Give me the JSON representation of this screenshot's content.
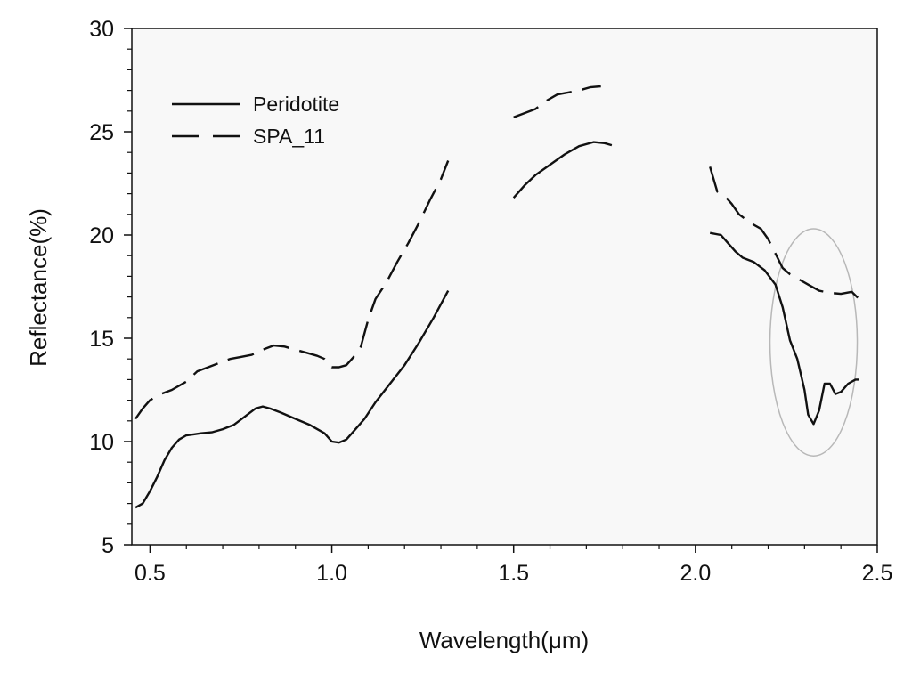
{
  "chart_data": {
    "type": "line",
    "title": "",
    "xlabel": "Wavelength(μm)",
    "ylabel": "Reflectance(%)",
    "xlim": [
      0.45,
      2.5
    ],
    "ylim": [
      5,
      30
    ],
    "xticks": [
      0.5,
      1.0,
      1.5,
      2.0,
      2.5
    ],
    "xtick_labels": [
      "0.5",
      "1.0",
      "1.5",
      "2.0",
      "2.5"
    ],
    "yticks": [
      5,
      10,
      15,
      20,
      25,
      30
    ],
    "ytick_labels": [
      "5",
      "10",
      "15",
      "20",
      "25",
      "30"
    ],
    "grid": false,
    "legend_position": "top-left",
    "colors": {
      "background": "#f8f8f8",
      "line": "#111111",
      "annotation": "#b8b8b8"
    },
    "series": [
      {
        "name": "Peridotite",
        "style": "solid",
        "segments": [
          [
            [
              0.46,
              6.8
            ],
            [
              0.48,
              7.0
            ],
            [
              0.5,
              7.6
            ],
            [
              0.52,
              8.3
            ],
            [
              0.54,
              9.1
            ],
            [
              0.56,
              9.7
            ],
            [
              0.58,
              10.1
            ],
            [
              0.6,
              10.3
            ],
            [
              0.62,
              10.35
            ],
            [
              0.64,
              10.4
            ],
            [
              0.67,
              10.45
            ],
            [
              0.7,
              10.6
            ],
            [
              0.73,
              10.8
            ],
            [
              0.76,
              11.2
            ],
            [
              0.79,
              11.6
            ],
            [
              0.81,
              11.7
            ],
            [
              0.83,
              11.6
            ],
            [
              0.86,
              11.4
            ],
            [
              0.9,
              11.1
            ],
            [
              0.94,
              10.8
            ],
            [
              0.98,
              10.4
            ],
            [
              1.0,
              10.0
            ],
            [
              1.02,
              9.95
            ],
            [
              1.04,
              10.1
            ],
            [
              1.06,
              10.5
            ],
            [
              1.09,
              11.1
            ],
            [
              1.12,
              11.9
            ],
            [
              1.16,
              12.8
            ],
            [
              1.2,
              13.7
            ],
            [
              1.24,
              14.8
            ],
            [
              1.28,
              16.0
            ],
            [
              1.32,
              17.3
            ]
          ],
          [
            [
              1.5,
              21.8
            ],
            [
              1.53,
              22.4
            ],
            [
              1.56,
              22.9
            ],
            [
              1.6,
              23.4
            ],
            [
              1.64,
              23.9
            ],
            [
              1.68,
              24.3
            ],
            [
              1.72,
              24.5
            ],
            [
              1.75,
              24.45
            ],
            [
              1.77,
              24.35
            ]
          ],
          [
            [
              2.04,
              20.1
            ],
            [
              2.07,
              20.0
            ],
            [
              2.09,
              19.6
            ],
            [
              2.11,
              19.2
            ],
            [
              2.13,
              18.9
            ],
            [
              2.16,
              18.7
            ],
            [
              2.19,
              18.3
            ],
            [
              2.22,
              17.6
            ],
            [
              2.24,
              16.5
            ],
            [
              2.26,
              14.9
            ],
            [
              2.28,
              14.0
            ],
            [
              2.3,
              12.5
            ],
            [
              2.31,
              11.3
            ],
            [
              2.325,
              10.85
            ],
            [
              2.34,
              11.5
            ],
            [
              2.355,
              12.8
            ],
            [
              2.37,
              12.8
            ],
            [
              2.385,
              12.3
            ],
            [
              2.4,
              12.4
            ],
            [
              2.42,
              12.8
            ],
            [
              2.44,
              13.0
            ],
            [
              2.45,
              13.0
            ]
          ]
        ]
      },
      {
        "name": "SPA_11",
        "style": "dashed",
        "segments": [
          [
            [
              0.46,
              11.1
            ],
            [
              0.48,
              11.6
            ],
            [
              0.5,
              12.0
            ],
            [
              0.53,
              12.3
            ],
            [
              0.56,
              12.5
            ],
            [
              0.6,
              12.9
            ],
            [
              0.63,
              13.4
            ],
            [
              0.66,
              13.6
            ],
            [
              0.69,
              13.8
            ],
            [
              0.72,
              14.0
            ],
            [
              0.75,
              14.1
            ],
            [
              0.78,
              14.2
            ],
            [
              0.81,
              14.45
            ],
            [
              0.84,
              14.65
            ],
            [
              0.87,
              14.6
            ],
            [
              0.9,
              14.45
            ],
            [
              0.93,
              14.3
            ],
            [
              0.96,
              14.15
            ],
            [
              0.98,
              14.0
            ],
            [
              1.0,
              13.6
            ],
            [
              1.02,
              13.6
            ],
            [
              1.04,
              13.7
            ],
            [
              1.06,
              14.1
            ],
            [
              1.08,
              14.6
            ],
            [
              1.1,
              15.9
            ],
            [
              1.12,
              16.9
            ],
            [
              1.15,
              17.7
            ],
            [
              1.18,
              18.7
            ],
            [
              1.21,
              19.6
            ],
            [
              1.24,
              20.6
            ],
            [
              1.27,
              21.7
            ],
            [
              1.3,
              22.7
            ],
            [
              1.32,
              23.6
            ]
          ],
          [
            [
              1.5,
              25.7
            ],
            [
              1.53,
              25.9
            ],
            [
              1.56,
              26.1
            ],
            [
              1.59,
              26.5
            ],
            [
              1.62,
              26.8
            ],
            [
              1.65,
              26.9
            ],
            [
              1.68,
              27.0
            ],
            [
              1.71,
              27.15
            ],
            [
              1.74,
              27.2
            ]
          ],
          [
            [
              2.04,
              23.3
            ],
            [
              2.06,
              22.1
            ],
            [
              2.08,
              21.9
            ],
            [
              2.1,
              21.5
            ],
            [
              2.12,
              21.0
            ],
            [
              2.15,
              20.6
            ],
            [
              2.18,
              20.3
            ],
            [
              2.2,
              19.8
            ],
            [
              2.22,
              19.1
            ],
            [
              2.24,
              18.4
            ],
            [
              2.26,
              18.1
            ],
            [
              2.28,
              17.9
            ],
            [
              2.31,
              17.6
            ],
            [
              2.34,
              17.3
            ],
            [
              2.37,
              17.2
            ],
            [
              2.4,
              17.15
            ],
            [
              2.43,
              17.25
            ],
            [
              2.45,
              16.9
            ]
          ]
        ]
      }
    ],
    "annotations": [
      {
        "shape": "ellipse",
        "center": [
          2.325,
          14.8
        ],
        "radius_x": 0.12,
        "radius_y": 5.5
      }
    ]
  }
}
